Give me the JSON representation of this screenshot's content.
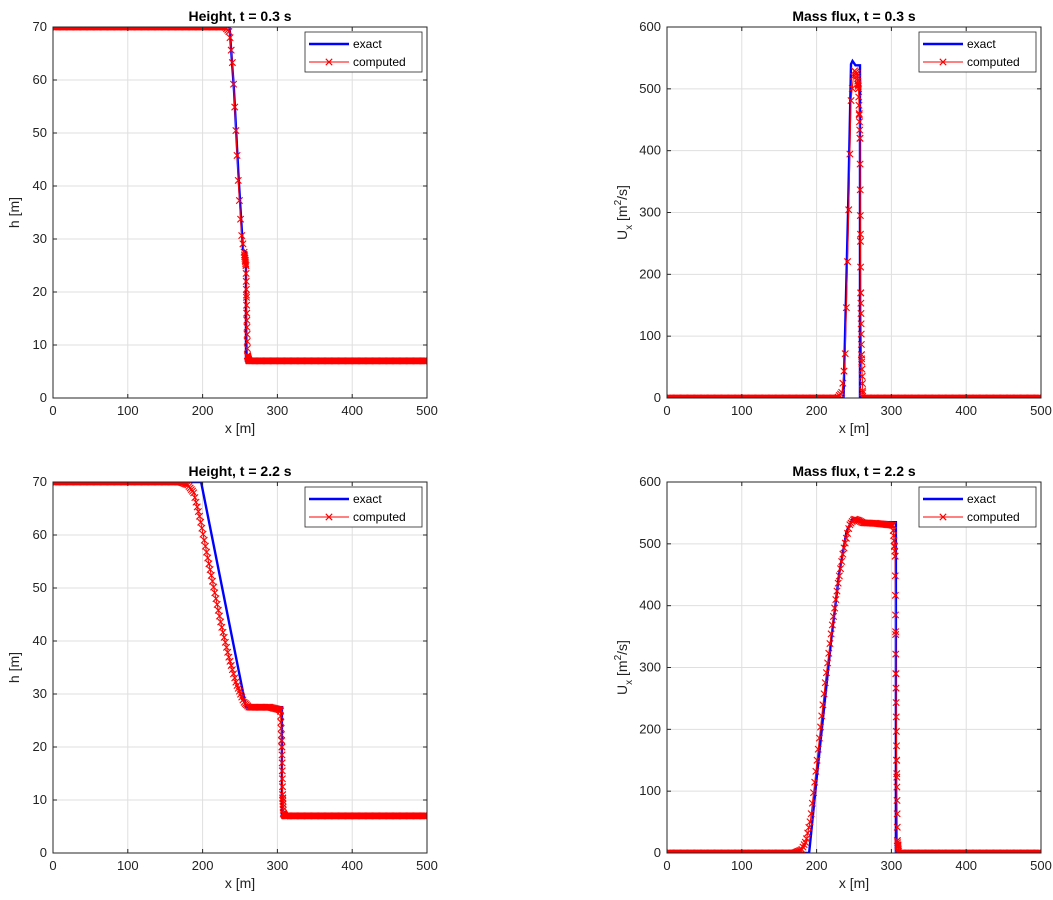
{
  "chart_data": [
    {
      "type": "line",
      "title": "Height, t = 0.3 s",
      "xlabel": "x [m]",
      "ylabel": "h [m]",
      "xlim": [
        0,
        500
      ],
      "ylim": [
        0,
        70
      ],
      "xticks": [
        0,
        100,
        200,
        300,
        400,
        500
      ],
      "yticks": [
        0,
        10,
        20,
        30,
        40,
        50,
        60,
        70
      ],
      "grid": true,
      "legend_position": "top-right",
      "series": [
        {
          "name": "exact",
          "color": "#0000ff",
          "marker": "none",
          "x": [
            0,
            236,
            242,
            248,
            254,
            258,
            258,
            500
          ],
          "y": [
            70,
            70,
            58,
            42,
            28,
            27.5,
            7,
            7
          ]
        },
        {
          "name": "computed",
          "color": "#ff0000",
          "marker": "x",
          "x": [
            0,
            230,
            236,
            240,
            244,
            248,
            252,
            256,
            258,
            259,
            260,
            262,
            300,
            500
          ],
          "y": [
            70,
            70,
            69,
            63,
            52,
            40,
            31,
            27,
            25,
            16,
            8,
            7,
            7,
            7
          ]
        }
      ]
    },
    {
      "type": "line",
      "title": "Mass flux,  t = 0.3 s",
      "xlabel": "x [m]",
      "ylabel": "U_x [m^2/s]",
      "ylabel_parts": {
        "u": "U",
        "x": "x",
        "units_pre": "[m",
        "sup": "2",
        "units_post": "/s]"
      },
      "xlim": [
        0,
        500
      ],
      "ylim": [
        0,
        600
      ],
      "xticks": [
        0,
        100,
        200,
        300,
        400,
        500
      ],
      "yticks": [
        0,
        100,
        200,
        300,
        400,
        500,
        600
      ],
      "grid": true,
      "legend_position": "top-right",
      "series": [
        {
          "name": "exact",
          "color": "#0000ff",
          "marker": "none",
          "x": [
            0,
            236,
            242,
            246,
            248,
            252,
            256,
            258,
            258,
            500
          ],
          "y": [
            0,
            0,
            300,
            540,
            545,
            538,
            538,
            538,
            0,
            0
          ]
        },
        {
          "name": "computed",
          "color": "#ff0000",
          "marker": "x",
          "x": [
            0,
            228,
            234,
            238,
            242,
            246,
            250,
            254,
            256,
            258,
            259,
            260,
            262,
            300,
            500
          ],
          "y": [
            0,
            0,
            10,
            60,
            250,
            480,
            530,
            525,
            500,
            420,
            170,
            70,
            0,
            0,
            0
          ]
        }
      ]
    },
    {
      "type": "line",
      "title": "Height, t = 2.2 s",
      "xlabel": "x [m]",
      "ylabel": "h [m]",
      "xlim": [
        0,
        500
      ],
      "ylim": [
        0,
        70
      ],
      "xticks": [
        0,
        100,
        200,
        300,
        400,
        500
      ],
      "yticks": [
        0,
        10,
        20,
        30,
        40,
        50,
        60,
        70
      ],
      "grid": true,
      "legend_position": "top-right",
      "series": [
        {
          "name": "exact",
          "color": "#0000ff",
          "marker": "none",
          "x": [
            0,
            198,
            258,
            305,
            306,
            306,
            500
          ],
          "y": [
            70,
            70,
            27.5,
            27.5,
            27.5,
            7,
            7
          ]
        },
        {
          "name": "computed",
          "color": "#ff0000",
          "marker": "x",
          "x": [
            0,
            170,
            180,
            188,
            196,
            205,
            215,
            225,
            235,
            245,
            255,
            262,
            270,
            290,
            304,
            306,
            307,
            308,
            310,
            350,
            500
          ],
          "y": [
            70,
            70,
            69.5,
            68,
            63.5,
            57,
            50,
            43,
            37,
            32,
            28.5,
            27.5,
            27.5,
            27.5,
            27,
            20,
            11,
            7.5,
            7,
            7,
            7
          ]
        }
      ]
    },
    {
      "type": "line",
      "title": "Mass flux,  t = 2.2 s",
      "xlabel": "x [m]",
      "ylabel": "U_x [m^2/s]",
      "ylabel_parts": {
        "u": "U",
        "x": "x",
        "units_pre": "[m",
        "sup": "2",
        "units_post": "/s]"
      },
      "xlim": [
        0,
        500
      ],
      "ylim": [
        0,
        600
      ],
      "xticks": [
        0,
        100,
        200,
        300,
        400,
        500
      ],
      "yticks": [
        0,
        100,
        200,
        300,
        400,
        500,
        600
      ],
      "grid": true,
      "legend_position": "top-right",
      "series": [
        {
          "name": "exact",
          "color": "#0000ff",
          "marker": "none",
          "x": [
            0,
            190,
            200,
            210,
            220,
            230,
            240,
            248,
            255,
            265,
            300,
            306,
            306,
            500
          ],
          "y": [
            0,
            0,
            120,
            235,
            350,
            450,
            520,
            540,
            540,
            536,
            535,
            535,
            0,
            0
          ]
        },
        {
          "name": "computed",
          "color": "#ff0000",
          "marker": "x",
          "x": [
            0,
            170,
            180,
            186,
            192,
            198,
            205,
            212,
            220,
            228,
            236,
            244,
            250,
            256,
            262,
            280,
            302,
            305,
            306,
            307,
            308,
            310,
            350,
            500
          ],
          "y": [
            0,
            0,
            5,
            20,
            55,
            120,
            200,
            280,
            360,
            430,
            490,
            530,
            540,
            538,
            534,
            533,
            530,
            480,
            290,
            150,
            20,
            0,
            0,
            0
          ]
        }
      ]
    }
  ]
}
